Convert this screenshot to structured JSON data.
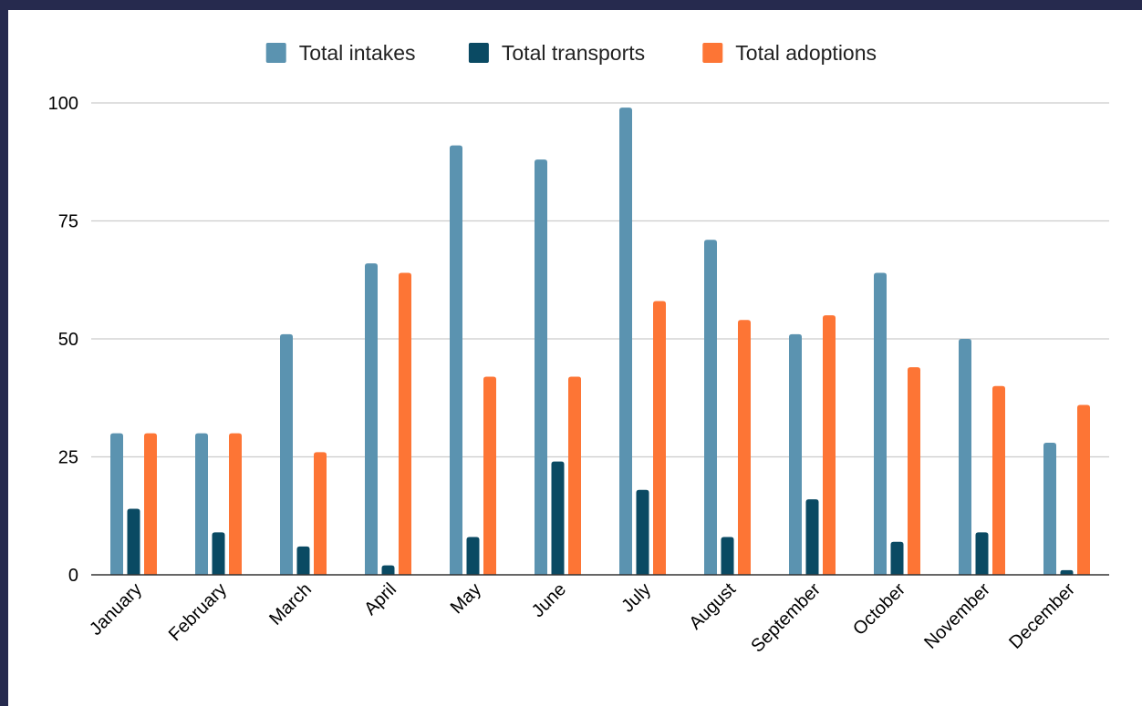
{
  "chart_data": {
    "type": "bar",
    "categories": [
      "January",
      "February",
      "March",
      "April",
      "May",
      "June",
      "July",
      "August",
      "September",
      "October",
      "November",
      "December"
    ],
    "series": [
      {
        "name": "Total intakes",
        "color": "#5b93b0",
        "values": [
          30,
          30,
          51,
          66,
          91,
          88,
          99,
          71,
          51,
          64,
          50,
          28
        ]
      },
      {
        "name": "Total transports",
        "color": "#0a4a63",
        "values": [
          14,
          9,
          6,
          2,
          8,
          24,
          18,
          8,
          16,
          7,
          9,
          1
        ]
      },
      {
        "name": "Total adoptions",
        "color": "#fd7535",
        "values": [
          30,
          30,
          26,
          64,
          42,
          42,
          58,
          54,
          55,
          44,
          40,
          36
        ]
      }
    ],
    "ylim": [
      0,
      100
    ],
    "yticks": [
      0,
      25,
      50,
      75,
      100
    ],
    "grid": true,
    "legend": "top"
  }
}
